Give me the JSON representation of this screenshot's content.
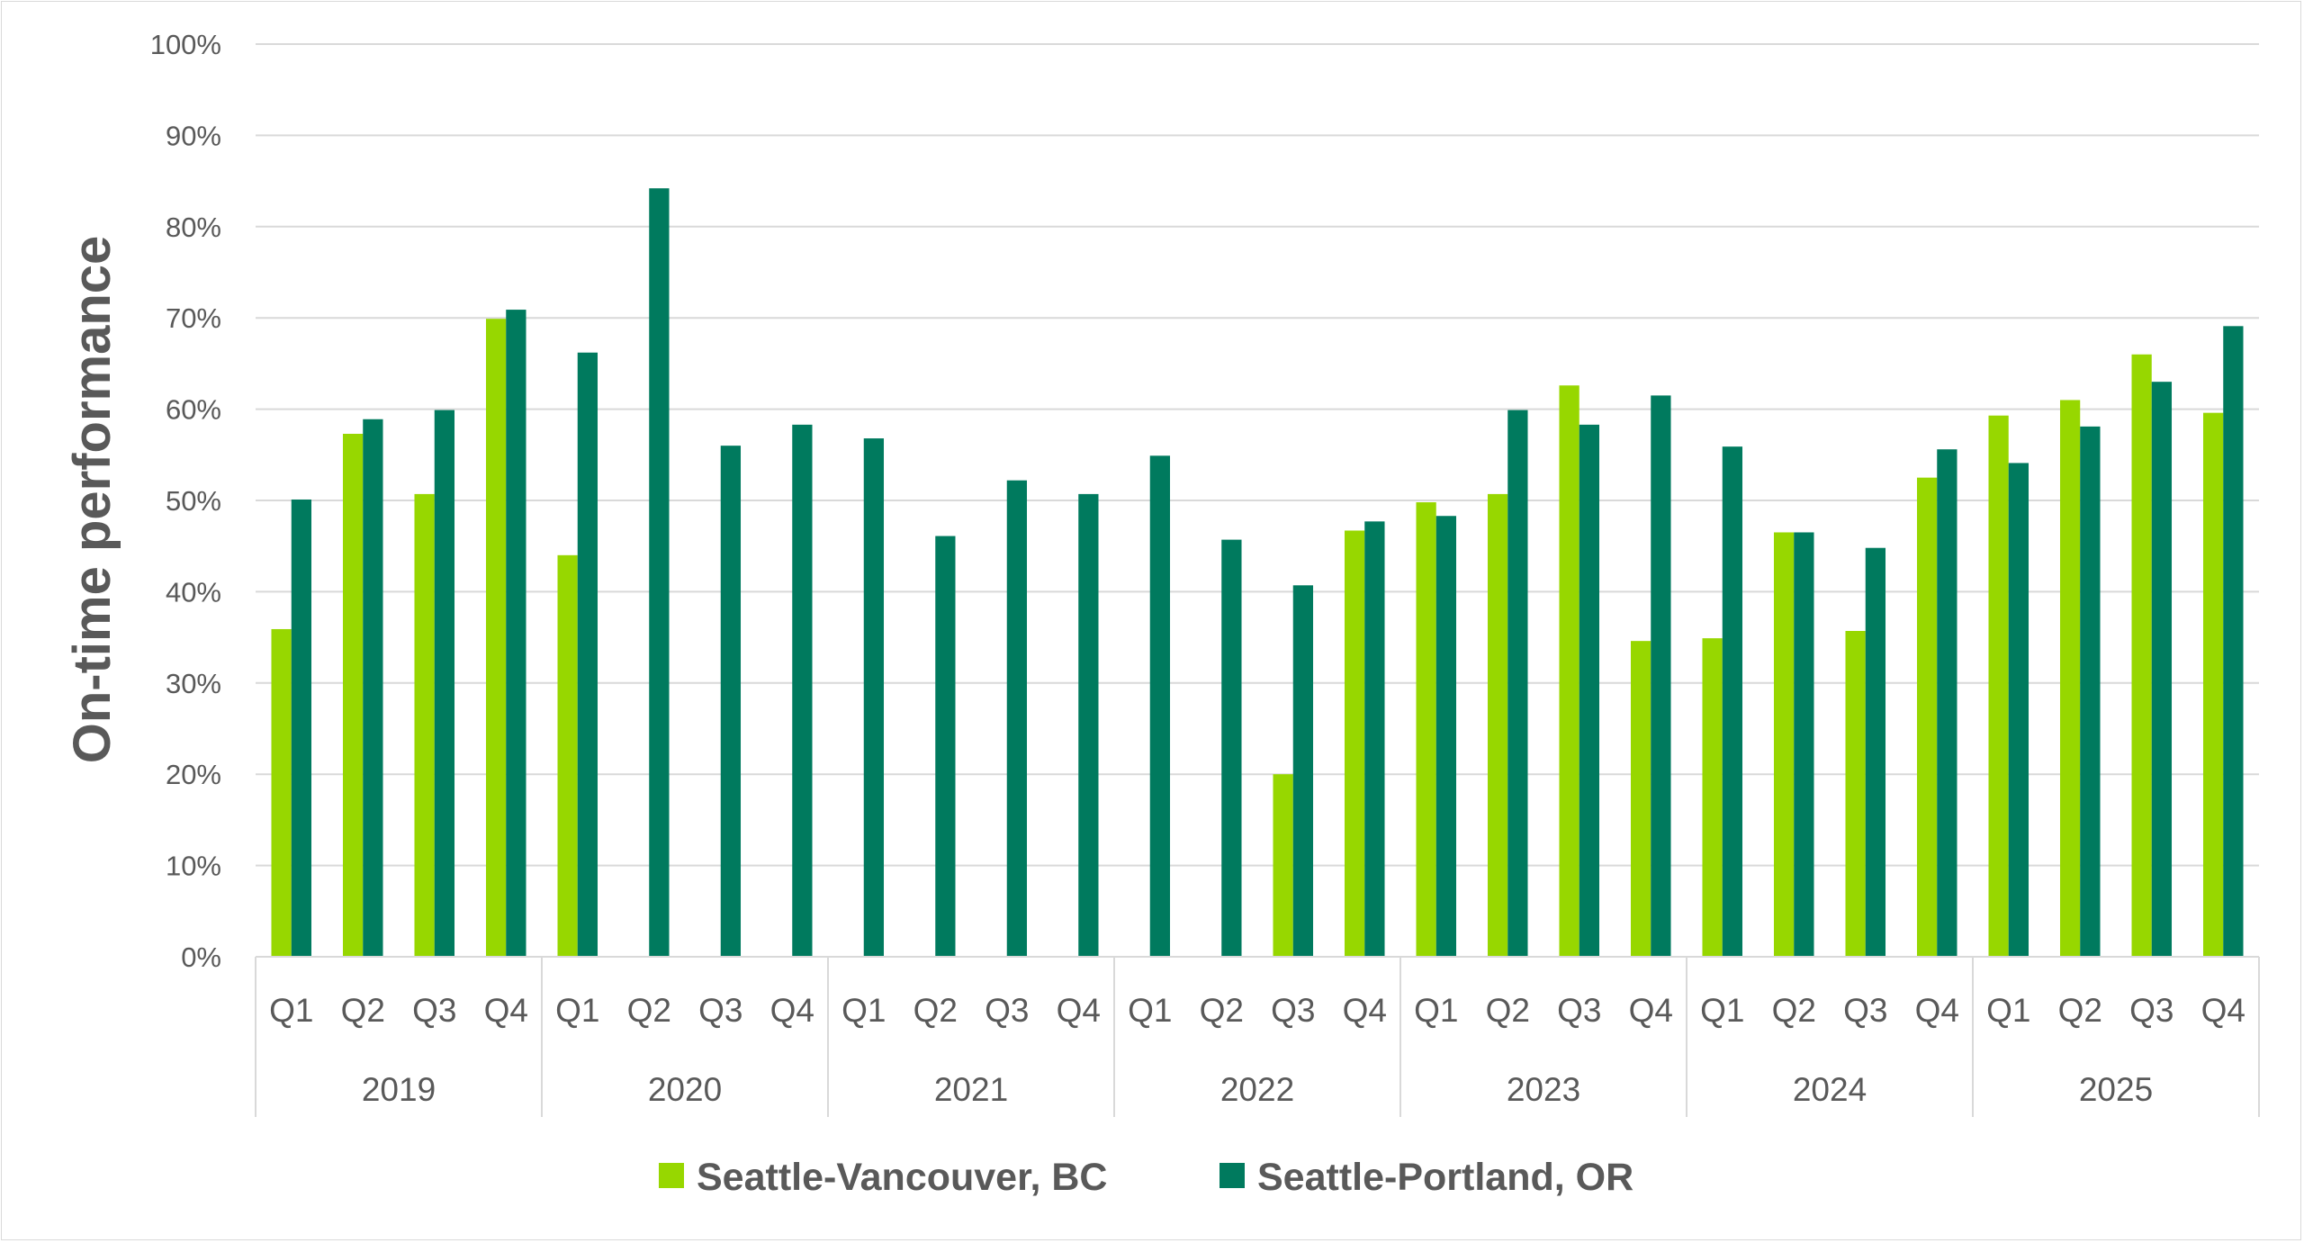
{
  "chart_data": {
    "type": "bar",
    "title": "",
    "ylabel": "On-time performance",
    "xlabel": "",
    "ylim": [
      0,
      100
    ],
    "yticks": [
      "0%",
      "10%",
      "20%",
      "30%",
      "40%",
      "50%",
      "60%",
      "70%",
      "80%",
      "90%",
      "100%"
    ],
    "grid": true,
    "legend_position": "bottom",
    "years": [
      "2019",
      "2020",
      "2021",
      "2022",
      "2023",
      "2024",
      "2025"
    ],
    "quarters": [
      "Q1",
      "Q2",
      "Q3",
      "Q4"
    ],
    "series": [
      {
        "name": "Seattle-Vancouver, BC",
        "color": "#97D700",
        "values": [
          35.9,
          57.3,
          50.7,
          69.9,
          44.0,
          null,
          null,
          null,
          null,
          null,
          null,
          null,
          null,
          null,
          20.0,
          46.7,
          49.8,
          50.7,
          62.6,
          34.6,
          34.9,
          46.5,
          35.7,
          52.5,
          59.3,
          61.0,
          66.0,
          59.6
        ]
      },
      {
        "name": "Seattle-Portland, OR",
        "color": "#007A5E",
        "values": [
          50.1,
          58.9,
          59.9,
          70.9,
          66.2,
          84.2,
          56.0,
          58.3,
          56.8,
          46.1,
          52.2,
          50.7,
          54.9,
          45.7,
          40.7,
          47.7,
          48.3,
          59.9,
          58.3,
          61.5,
          55.9,
          46.5,
          44.8,
          55.6,
          54.1,
          58.1,
          63.0,
          69.1
        ]
      }
    ]
  }
}
